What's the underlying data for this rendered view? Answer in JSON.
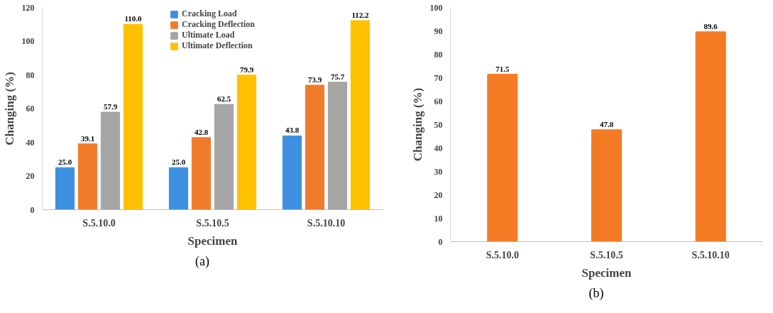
{
  "chart_data": [
    {
      "type": "bar",
      "xlabel": "Specimen",
      "ylabel": "Changing (%)",
      "categories": [
        "S.5.10.0",
        "S.5.10.5",
        "S.5.10.10"
      ],
      "ylim": [
        0,
        120
      ],
      "yticks": [
        0,
        20,
        40,
        60,
        80,
        100,
        120
      ],
      "grid": false,
      "legend": "top",
      "series": [
        {
          "name": "Cracking Load",
          "color": "#3d8fe0",
          "values": [
            25.0,
            25.0,
            43.8
          ],
          "value_labels": [
            "25.0",
            "25.0",
            "43.8"
          ]
        },
        {
          "name": "Cracking Deflection",
          "color": "#f07b2b",
          "values": [
            39.1,
            42.8,
            73.9
          ],
          "value_labels": [
            "39.1",
            "42.8",
            "73.9"
          ]
        },
        {
          "name": "Ultimate Load",
          "color": "#a5a5a5",
          "values": [
            57.9,
            62.5,
            75.7
          ],
          "value_labels": [
            "57.9",
            "62.5",
            "75.7"
          ]
        },
        {
          "name": "Ultimate Deflection",
          "color": "#ffc000",
          "values": [
            110.0,
            79.9,
            112.2
          ],
          "value_labels": [
            "110.0",
            "79.9",
            "112.2"
          ]
        }
      ],
      "annotations": [
        "(a)"
      ]
    },
    {
      "type": "bar",
      "xlabel": "Specimen",
      "ylabel": "Changing (%)",
      "categories": [
        "S.5.10.0",
        "S.5.10.5",
        "S.5.10.10"
      ],
      "ylim": [
        0,
        100
      ],
      "yticks": [
        0,
        10,
        20,
        30,
        40,
        50,
        60,
        70,
        80,
        90,
        100
      ],
      "grid": false,
      "series": [
        {
          "color": "#f47b24",
          "values": [
            71.5,
            47.8,
            89.6
          ],
          "value_labels": [
            "71.5",
            "47.8",
            "89.6"
          ]
        }
      ],
      "annotations": [
        "(b)"
      ]
    }
  ]
}
